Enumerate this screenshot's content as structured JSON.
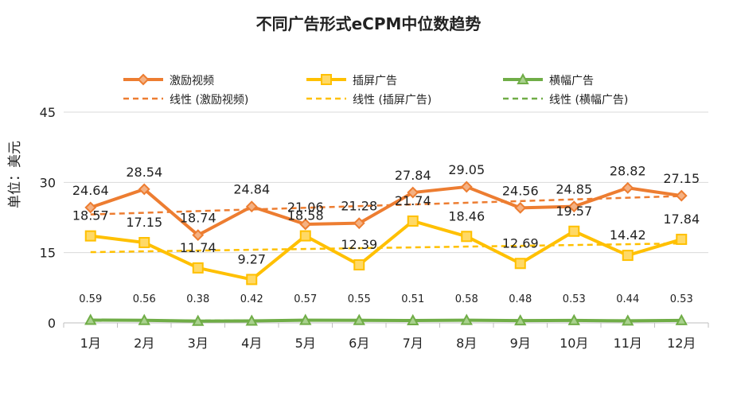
{
  "chart_data": {
    "type": "line",
    "title": "不同广告形式eCPM中位数趋势",
    "ylabel": "单位：美元",
    "xlabel": "",
    "ylim": [
      0,
      45
    ],
    "yticks": [
      0,
      15,
      30,
      45
    ],
    "categories": [
      "1月",
      "2月",
      "3月",
      "4月",
      "5月",
      "6月",
      "7月",
      "8月",
      "9月",
      "10月",
      "11月",
      "12月"
    ],
    "series": [
      {
        "name": "激励视频",
        "color": "#ED7D31",
        "marker": "diamond",
        "values": [
          24.64,
          28.54,
          18.74,
          24.84,
          21.06,
          21.28,
          27.84,
          29.05,
          24.56,
          24.85,
          28.82,
          27.15
        ]
      },
      {
        "name": "插屏广告",
        "color": "#FFC000",
        "marker": "square",
        "values": [
          18.57,
          17.15,
          11.74,
          9.27,
          18.58,
          12.39,
          21.74,
          18.46,
          12.69,
          19.57,
          14.42,
          17.84
        ]
      },
      {
        "name": "横幅广告",
        "color": "#70AD47",
        "marker": "triangle",
        "values": [
          0.59,
          0.56,
          0.38,
          0.42,
          0.57,
          0.55,
          0.51,
          0.58,
          0.48,
          0.53,
          0.44,
          0.53
        ]
      }
    ],
    "trendlines": [
      {
        "name": "线性 (激励视频)",
        "color": "#ED7D31"
      },
      {
        "name": "线性 (插屏广告)",
        "color": "#FFC000"
      },
      {
        "name": "线性 (横幅广告)",
        "color": "#70AD47"
      }
    ],
    "legend": "top",
    "grid": true
  }
}
